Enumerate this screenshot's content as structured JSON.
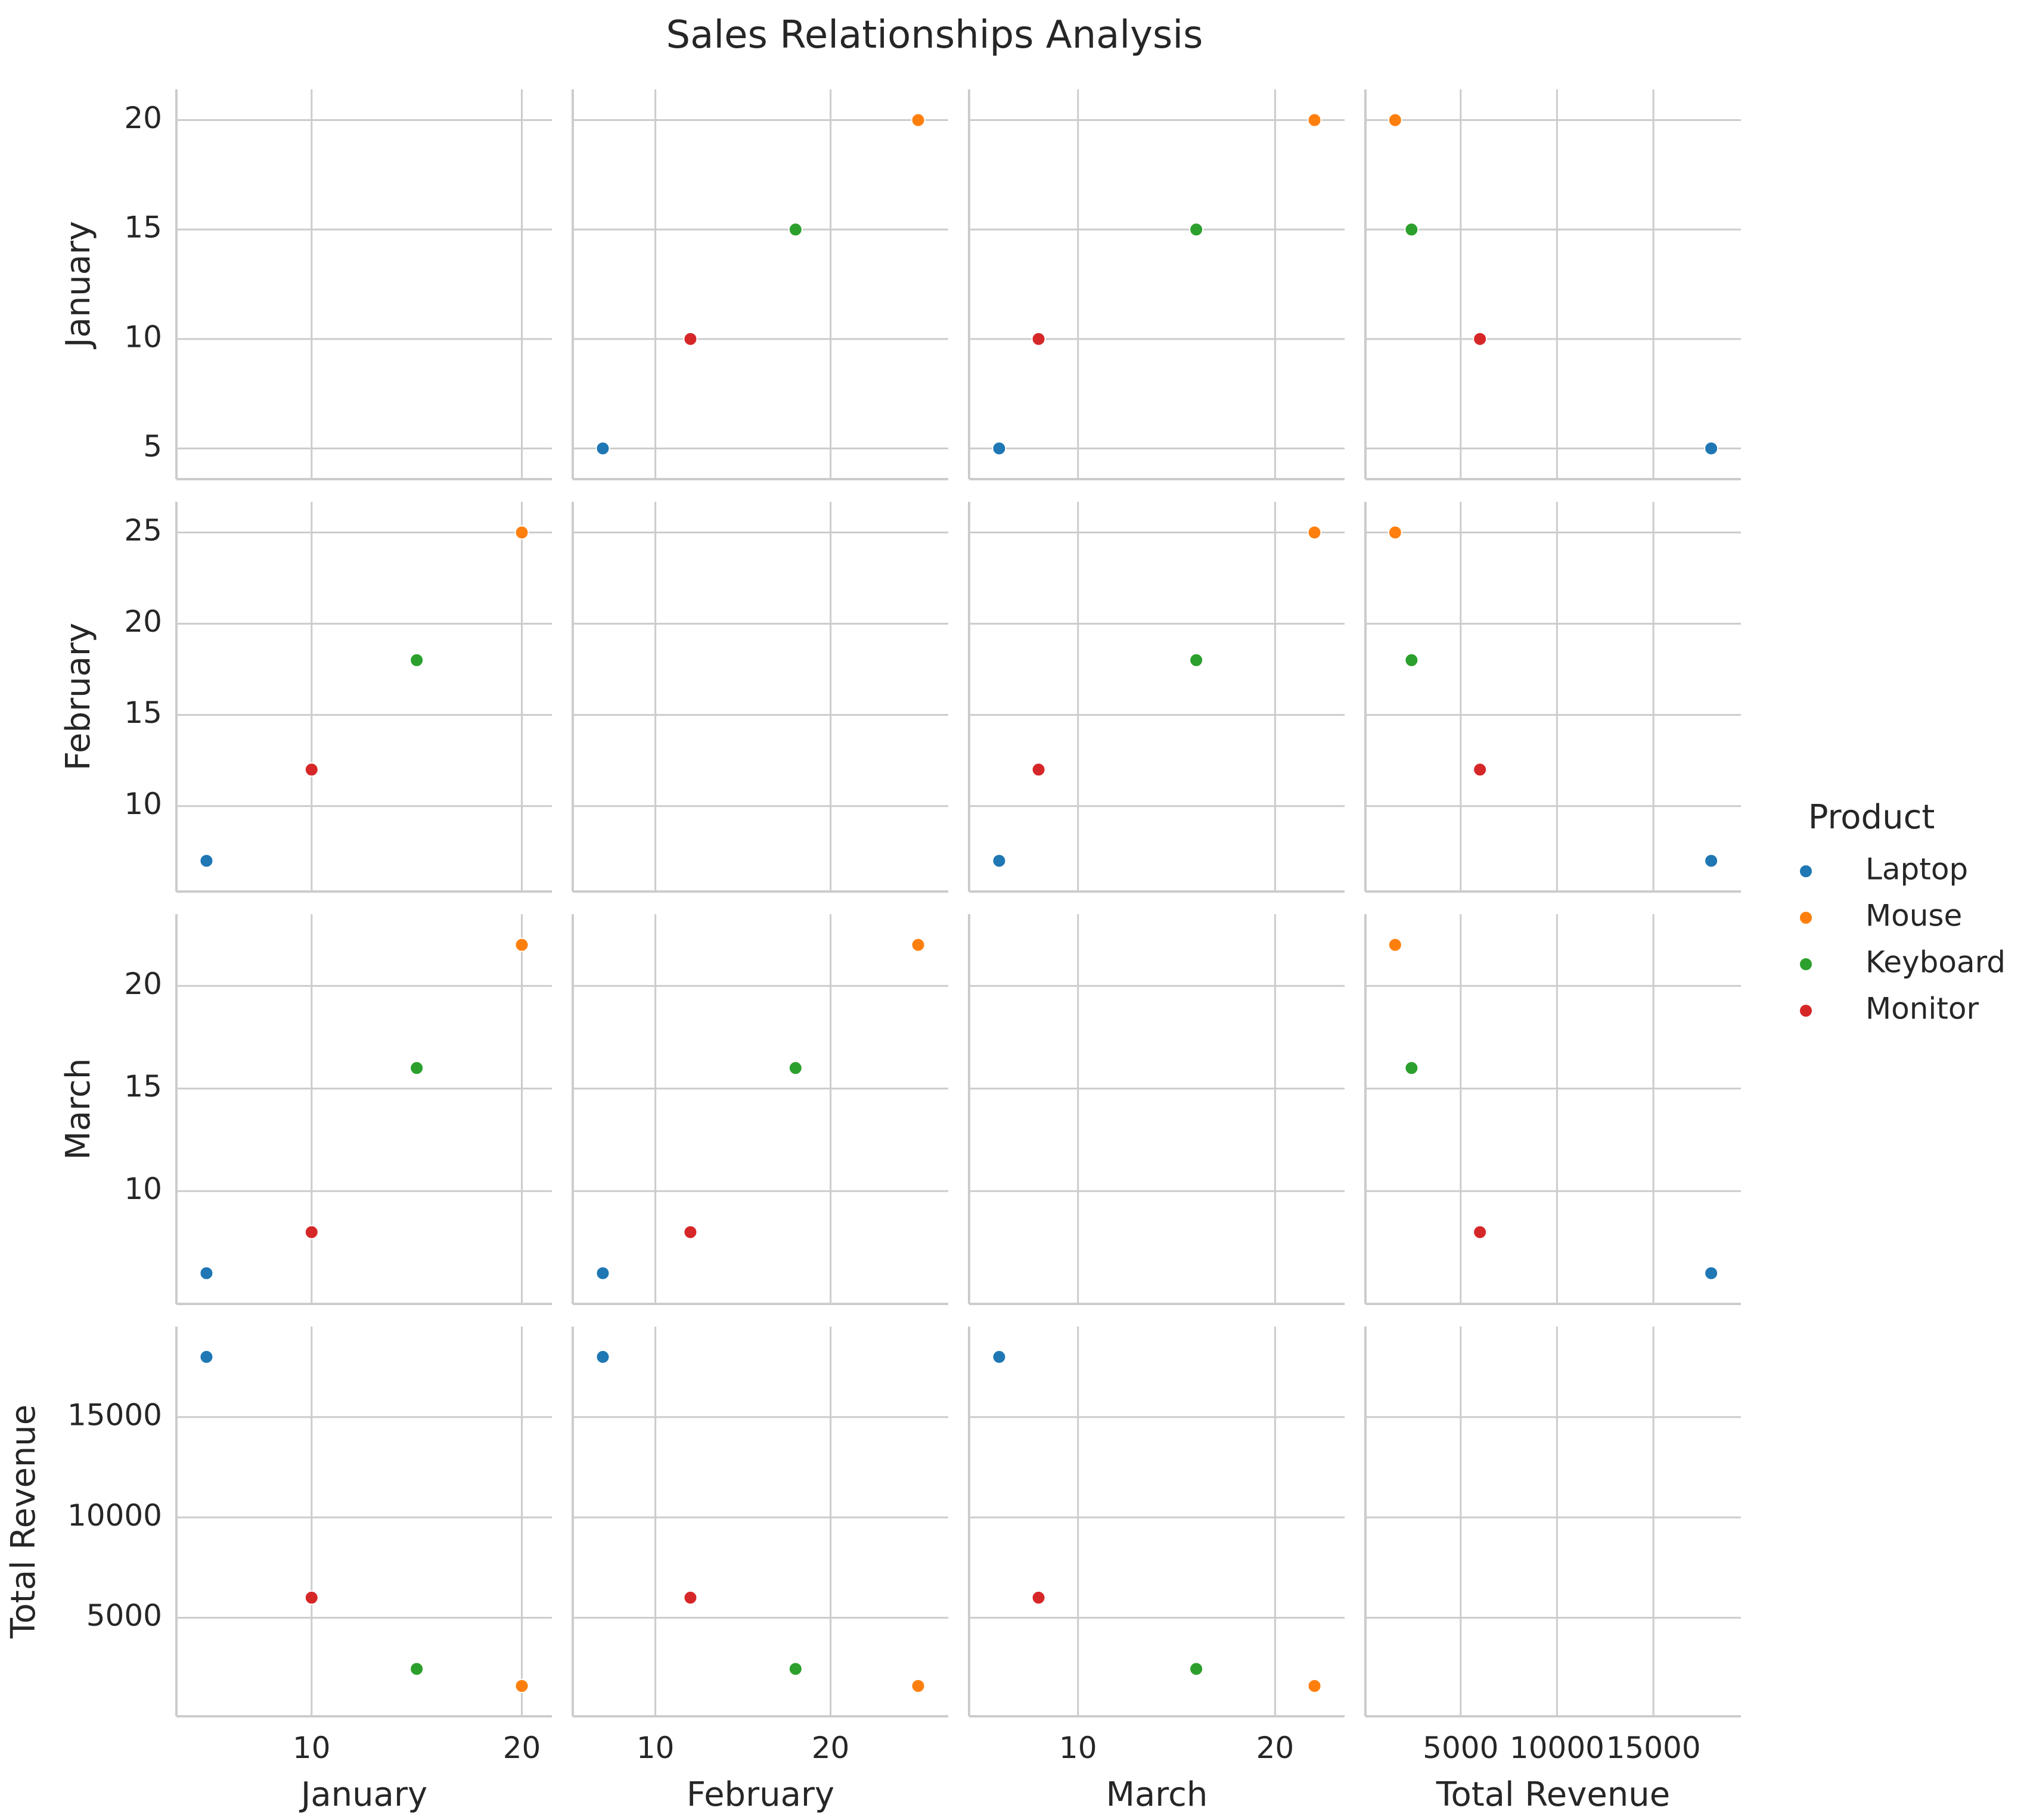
{
  "chart_data": {
    "type": "scatter",
    "subtype": "pairplot",
    "title": "Sales Relationships Analysis",
    "variables": [
      "January",
      "February",
      "March",
      "Total Revenue"
    ],
    "hue": "Product",
    "legend": {
      "title": "Product",
      "placement": "right"
    },
    "grid": true,
    "diagonal_panels": "empty",
    "series": [
      {
        "name": "Laptop",
        "color": "#1f77b4",
        "values": {
          "January": 5,
          "February": 7,
          "March": 6,
          "Total Revenue": 18000
        }
      },
      {
        "name": "Mouse",
        "color": "#ff7f0e",
        "values": {
          "January": 20,
          "February": 25,
          "March": 22,
          "Total Revenue": 1600
        }
      },
      {
        "name": "Keyboard",
        "color": "#2ca02c",
        "values": {
          "January": 15,
          "February": 18,
          "March": 16,
          "Total Revenue": 2450
        }
      },
      {
        "name": "Monitor",
        "color": "#d62728",
        "values": {
          "January": 10,
          "February": 12,
          "March": 8,
          "Total Revenue": 6000
        }
      }
    ],
    "axes": {
      "January": {
        "range": [
          4.25,
          20.75
        ],
        "ticks": [
          5,
          10,
          15,
          20
        ],
        "x_ticks": [
          10,
          20
        ]
      },
      "February": {
        "range": [
          6.1,
          25.9
        ],
        "ticks": [
          10,
          15,
          20,
          25
        ],
        "x_ticks": [
          10,
          20
        ]
      },
      "March": {
        "range": [
          5.2,
          22.8
        ],
        "ticks": [
          10,
          15,
          20
        ],
        "x_ticks": [
          10,
          20
        ]
      },
      "Total Revenue": {
        "range": [
          800,
          18800
        ],
        "ticks": [
          5000,
          10000,
          15000
        ],
        "x_ticks": [
          5000,
          10000,
          15000
        ]
      }
    }
  }
}
